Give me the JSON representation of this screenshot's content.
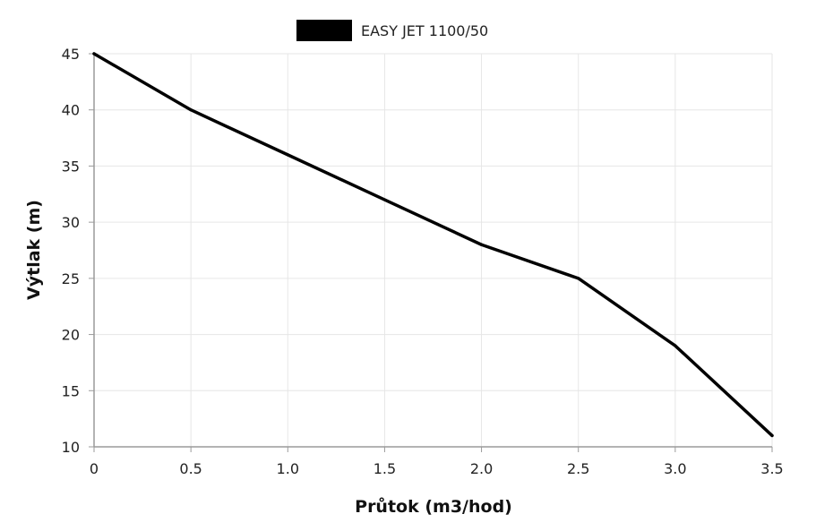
{
  "chart_data": {
    "type": "line",
    "xlabel": "Průtok (m3/hod)",
    "ylabel": "Výtlak (m)",
    "x_ticks": [
      "0",
      "0.5",
      "1.0",
      "1.5",
      "2.0",
      "2.5",
      "3.0",
      "3.5"
    ],
    "y_ticks": [
      "10",
      "15",
      "20",
      "25",
      "30",
      "35",
      "40",
      "45"
    ],
    "xlim": [
      0,
      3.5
    ],
    "ylim": [
      10,
      45
    ],
    "grid": true,
    "legend_position": "top-center",
    "series": [
      {
        "name": "EASY JET 1100/50",
        "color": "#000000",
        "x": [
          0,
          0.5,
          1.0,
          1.5,
          2.0,
          2.5,
          3.0,
          3.5
        ],
        "y": [
          45,
          40,
          36,
          32,
          28,
          25,
          19,
          11
        ]
      }
    ]
  }
}
